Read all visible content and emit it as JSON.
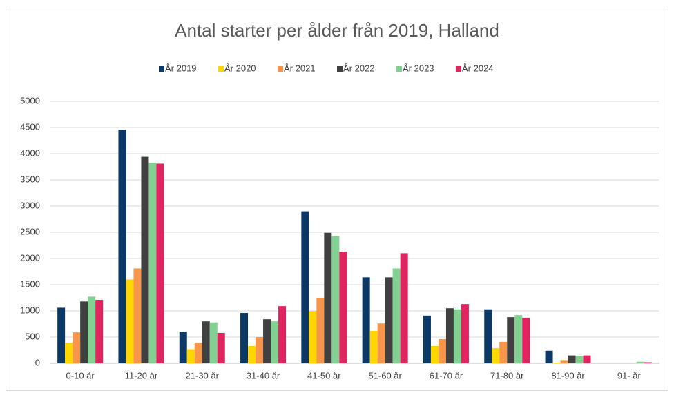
{
  "chart_data": {
    "type": "bar",
    "title": "Antal starter per ålder från 2019, Halland",
    "categories": [
      "0-10 år",
      "11-20 år",
      "21-30 år",
      "31-40 år",
      "41-50 år",
      "51-60 år",
      "61-70 år",
      "71-80 år",
      "81-90 år",
      "91- år"
    ],
    "series": [
      {
        "name": "År 2019",
        "color": "#0c3866",
        "values": [
          1060,
          4460,
          605,
          960,
          2900,
          1640,
          910,
          1030,
          240,
          0
        ]
      },
      {
        "name": "År 2020",
        "color": "#ffd600",
        "values": [
          395,
          1600,
          270,
          330,
          1000,
          620,
          330,
          290,
          10,
          0
        ]
      },
      {
        "name": "År 2021",
        "color": "#f7964a",
        "values": [
          590,
          1810,
          395,
          500,
          1250,
          760,
          460,
          410,
          60,
          0
        ]
      },
      {
        "name": "År 2022",
        "color": "#404040",
        "values": [
          1180,
          3940,
          800,
          840,
          2490,
          1640,
          1050,
          880,
          150,
          0
        ]
      },
      {
        "name": "År 2023",
        "color": "#82d092",
        "values": [
          1270,
          3830,
          780,
          800,
          2430,
          1810,
          1030,
          920,
          140,
          30
        ]
      },
      {
        "name": "År 2024",
        "color": "#e0245f",
        "values": [
          1210,
          3810,
          580,
          1090,
          2130,
          2100,
          1130,
          870,
          150,
          20
        ]
      }
    ],
    "ylim": [
      0,
      5000
    ],
    "yticks": [
      0,
      500,
      1000,
      1500,
      2000,
      2500,
      3000,
      3500,
      4000,
      4500,
      5000
    ],
    "grid": true,
    "legend": "top"
  }
}
